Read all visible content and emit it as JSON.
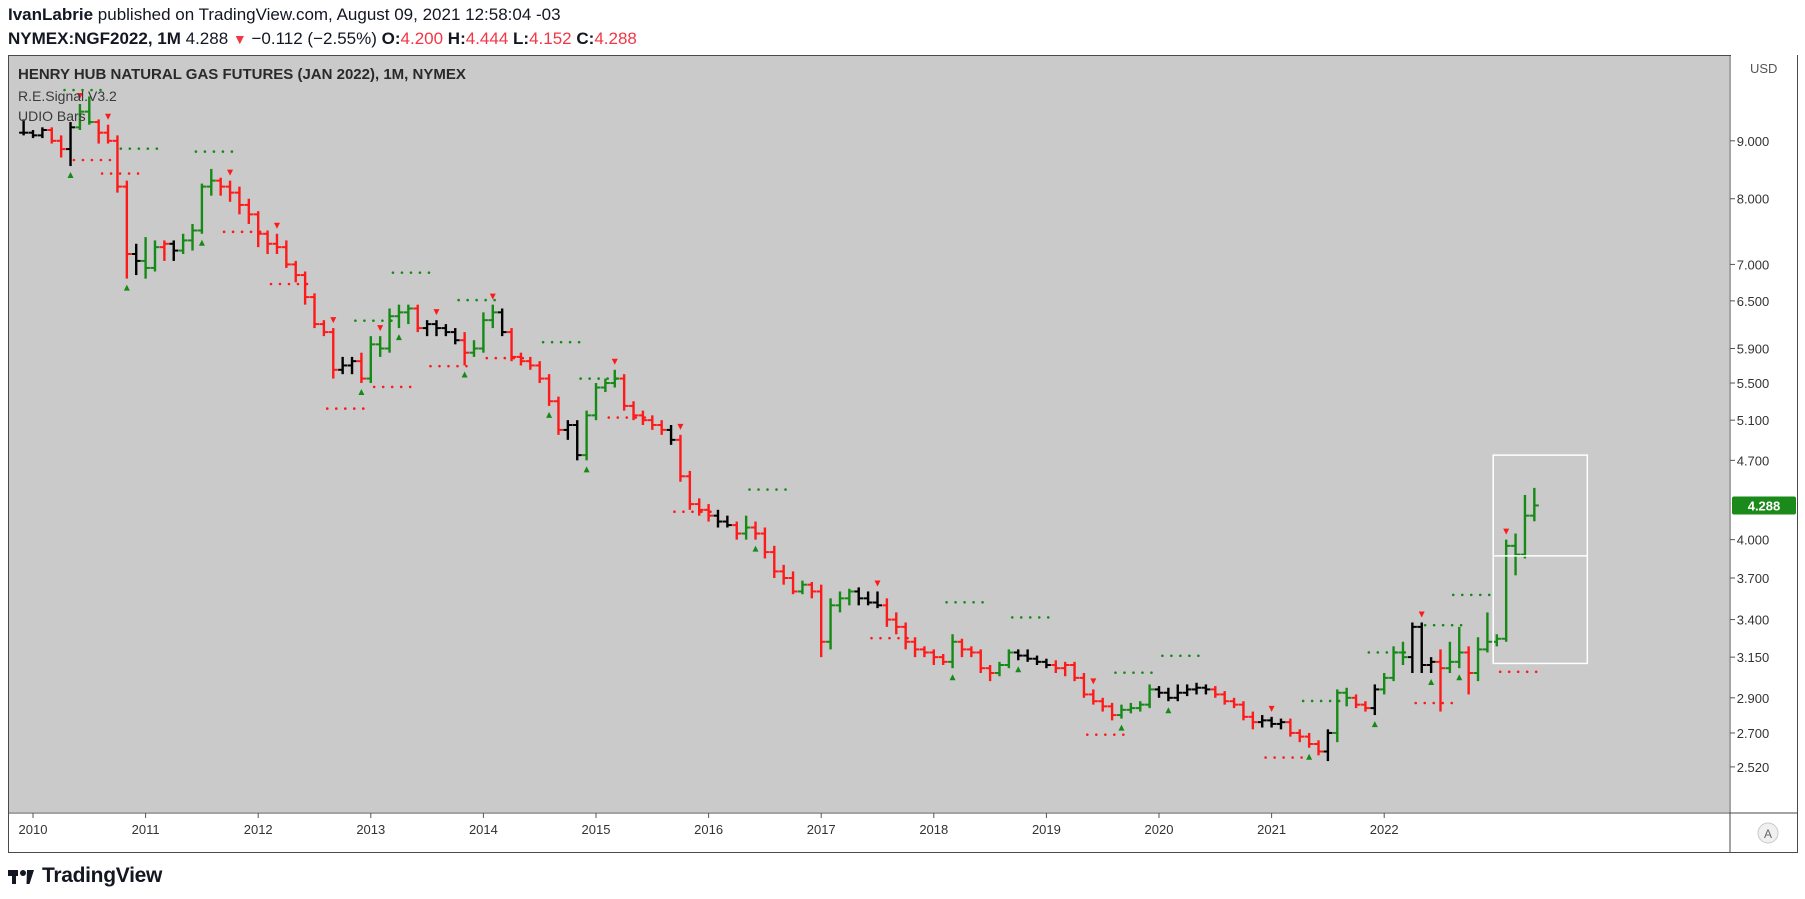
{
  "header": {
    "author": "IvanLabrie",
    "published_text": "published on TradingView.com, August 09, 2021 12:58:04 -03",
    "symbol": "NYMEX:NGF2022, 1M",
    "last": "4.288",
    "change_arrow": "▼",
    "change": "−0.112 (−2.55%)",
    "o_label": "O:",
    "o_value": "4.200",
    "h_label": "H:",
    "h_value": "4.444",
    "l_label": "L:",
    "l_value": "4.152",
    "c_label": "C:",
    "c_value": "4.288"
  },
  "legend": {
    "title": "HENRY HUB NATURAL GAS FUTURES (JAN 2022), 1M, NYMEX",
    "indicator_1": "R.E.Signal.V3.2",
    "indicator_2": "UDIO Bars"
  },
  "price_scale": {
    "currency": "USD",
    "last_price_label": "4.288",
    "auto_button": "A"
  },
  "footer": {
    "brand": "TradingView"
  },
  "colors": {
    "up": "#168a16",
    "down": "#ff1a1a",
    "neutral": "#000000",
    "last_price_badge": "#1a8a1a",
    "background": "#cacaca",
    "axis_background": "#ffffff"
  },
  "chart_data": {
    "type": "ohlc",
    "interval": "1M",
    "y_scale": "log",
    "ylim": [
      2.38,
      10.5
    ],
    "xlim": [
      "2009-10",
      "2022-12"
    ],
    "y_ticks": [
      "9.000",
      "8.000",
      "7.000",
      "6.500",
      "5.900",
      "5.500",
      "5.100",
      "4.700",
      "4.000",
      "3.700",
      "3.400",
      "3.150",
      "2.900",
      "2.700",
      "2.520"
    ],
    "x_ticks": [
      "2010",
      "2011",
      "2012",
      "2013",
      "2014",
      "2015",
      "2016",
      "2017",
      "2018",
      "2019",
      "2020",
      "2021",
      "2022"
    ],
    "bars_start": "2009-12",
    "bars": [
      {
        "o": 9.15,
        "h": 9.4,
        "l": 9.1,
        "c": 9.15,
        "t": "n"
      },
      {
        "o": 9.15,
        "h": 9.2,
        "l": 9.05,
        "c": 9.1,
        "t": "n"
      },
      {
        "o": 9.1,
        "h": 9.25,
        "l": 9.05,
        "c": 9.2,
        "t": "n"
      },
      {
        "o": 9.2,
        "h": 9.25,
        "l": 8.95,
        "c": 9.0,
        "t": "d"
      },
      {
        "o": 9.0,
        "h": 9.1,
        "l": 8.7,
        "c": 8.85,
        "t": "d"
      },
      {
        "o": 8.85,
        "h": 9.35,
        "l": 8.55,
        "c": 9.25,
        "t": "n"
      },
      {
        "o": 9.25,
        "h": 9.7,
        "l": 9.2,
        "c": 9.55,
        "t": "u"
      },
      {
        "o": 9.55,
        "h": 9.85,
        "l": 9.3,
        "c": 9.35,
        "t": "u"
      },
      {
        "o": 9.35,
        "h": 9.4,
        "l": 8.95,
        "c": 9.15,
        "t": "d"
      },
      {
        "o": 9.15,
        "h": 9.3,
        "l": 8.95,
        "c": 9.0,
        "t": "d"
      },
      {
        "o": 9.0,
        "h": 9.1,
        "l": 8.1,
        "c": 8.2,
        "t": "d"
      },
      {
        "o": 8.2,
        "h": 8.3,
        "l": 6.8,
        "c": 7.15,
        "t": "d"
      },
      {
        "o": 7.15,
        "h": 7.3,
        "l": 6.85,
        "c": 7.05,
        "t": "n"
      },
      {
        "o": 7.05,
        "h": 7.4,
        "l": 6.8,
        "c": 6.95,
        "t": "u"
      },
      {
        "o": 6.95,
        "h": 7.35,
        "l": 6.9,
        "c": 7.25,
        "t": "u"
      },
      {
        "o": 7.25,
        "h": 7.35,
        "l": 7.05,
        "c": 7.3,
        "t": "d"
      },
      {
        "o": 7.3,
        "h": 7.35,
        "l": 7.05,
        "c": 7.2,
        "t": "n"
      },
      {
        "o": 7.2,
        "h": 7.45,
        "l": 7.15,
        "c": 7.35,
        "t": "u"
      },
      {
        "o": 7.35,
        "h": 7.6,
        "l": 7.2,
        "c": 7.5,
        "t": "u"
      },
      {
        "o": 7.5,
        "h": 8.25,
        "l": 7.45,
        "c": 8.2,
        "t": "u"
      },
      {
        "o": 8.2,
        "h": 8.5,
        "l": 8.05,
        "c": 8.3,
        "t": "u"
      },
      {
        "o": 8.3,
        "h": 8.35,
        "l": 8.05,
        "c": 8.2,
        "t": "d"
      },
      {
        "o": 8.2,
        "h": 8.3,
        "l": 7.95,
        "c": 8.1,
        "t": "d"
      },
      {
        "o": 8.1,
        "h": 8.2,
        "l": 7.75,
        "c": 7.9,
        "t": "d"
      },
      {
        "o": 7.9,
        "h": 8.0,
        "l": 7.6,
        "c": 7.75,
        "t": "d"
      },
      {
        "o": 7.75,
        "h": 7.8,
        "l": 7.25,
        "c": 7.45,
        "t": "d"
      },
      {
        "o": 7.45,
        "h": 7.5,
        "l": 7.15,
        "c": 7.3,
        "t": "d"
      },
      {
        "o": 7.3,
        "h": 7.45,
        "l": 7.15,
        "c": 7.25,
        "t": "d"
      },
      {
        "o": 7.25,
        "h": 7.35,
        "l": 6.95,
        "c": 7.0,
        "t": "d"
      },
      {
        "o": 7.0,
        "h": 7.05,
        "l": 6.75,
        "c": 6.85,
        "t": "d"
      },
      {
        "o": 6.85,
        "h": 6.9,
        "l": 6.45,
        "c": 6.55,
        "t": "d"
      },
      {
        "o": 6.55,
        "h": 6.6,
        "l": 6.15,
        "c": 6.2,
        "t": "d"
      },
      {
        "o": 6.2,
        "h": 6.25,
        "l": 6.05,
        "c": 6.1,
        "t": "d"
      },
      {
        "o": 6.1,
        "h": 6.15,
        "l": 5.55,
        "c": 5.65,
        "t": "d"
      },
      {
        "o": 5.65,
        "h": 5.8,
        "l": 5.6,
        "c": 5.7,
        "t": "n"
      },
      {
        "o": 5.7,
        "h": 5.8,
        "l": 5.6,
        "c": 5.75,
        "t": "n"
      },
      {
        "o": 5.75,
        "h": 5.85,
        "l": 5.5,
        "c": 5.55,
        "t": "d"
      },
      {
        "o": 5.55,
        "h": 6.05,
        "l": 5.5,
        "c": 5.95,
        "t": "u"
      },
      {
        "o": 5.95,
        "h": 6.05,
        "l": 5.8,
        "c": 5.9,
        "t": "u"
      },
      {
        "o": 5.9,
        "h": 6.4,
        "l": 5.85,
        "c": 6.3,
        "t": "u"
      },
      {
        "o": 6.3,
        "h": 6.45,
        "l": 6.15,
        "c": 6.35,
        "t": "u"
      },
      {
        "o": 6.35,
        "h": 6.45,
        "l": 6.2,
        "c": 6.4,
        "t": "u"
      },
      {
        "o": 6.4,
        "h": 6.45,
        "l": 6.1,
        "c": 6.15,
        "t": "d"
      },
      {
        "o": 6.15,
        "h": 6.25,
        "l": 6.05,
        "c": 6.2,
        "t": "n"
      },
      {
        "o": 6.2,
        "h": 6.25,
        "l": 6.05,
        "c": 6.15,
        "t": "n"
      },
      {
        "o": 6.15,
        "h": 6.2,
        "l": 6.05,
        "c": 6.1,
        "t": "n"
      },
      {
        "o": 6.1,
        "h": 6.15,
        "l": 5.95,
        "c": 6.0,
        "t": "n"
      },
      {
        "o": 6.0,
        "h": 6.1,
        "l": 5.7,
        "c": 5.85,
        "t": "d"
      },
      {
        "o": 5.85,
        "h": 6.0,
        "l": 5.8,
        "c": 5.9,
        "t": "u"
      },
      {
        "o": 5.9,
        "h": 6.35,
        "l": 5.85,
        "c": 6.25,
        "t": "u"
      },
      {
        "o": 6.25,
        "h": 6.45,
        "l": 6.15,
        "c": 6.35,
        "t": "u"
      },
      {
        "o": 6.35,
        "h": 6.4,
        "l": 6.05,
        "c": 6.1,
        "t": "n"
      },
      {
        "o": 6.1,
        "h": 6.15,
        "l": 5.75,
        "c": 5.8,
        "t": "d"
      },
      {
        "o": 5.8,
        "h": 5.85,
        "l": 5.7,
        "c": 5.75,
        "t": "d"
      },
      {
        "o": 5.75,
        "h": 5.8,
        "l": 5.65,
        "c": 5.7,
        "t": "d"
      },
      {
        "o": 5.7,
        "h": 5.75,
        "l": 5.5,
        "c": 5.55,
        "t": "d"
      },
      {
        "o": 5.55,
        "h": 5.6,
        "l": 5.25,
        "c": 5.3,
        "t": "d"
      },
      {
        "o": 5.3,
        "h": 5.35,
        "l": 4.95,
        "c": 5.0,
        "t": "d"
      },
      {
        "o": 5.0,
        "h": 5.1,
        "l": 4.9,
        "c": 5.05,
        "t": "n"
      },
      {
        "o": 5.05,
        "h": 5.1,
        "l": 4.7,
        "c": 4.75,
        "t": "n"
      },
      {
        "o": 4.75,
        "h": 5.2,
        "l": 4.7,
        "c": 5.15,
        "t": "u"
      },
      {
        "o": 5.15,
        "h": 5.5,
        "l": 5.1,
        "c": 5.45,
        "t": "u"
      },
      {
        "o": 5.45,
        "h": 5.55,
        "l": 5.4,
        "c": 5.5,
        "t": "u"
      },
      {
        "o": 5.5,
        "h": 5.65,
        "l": 5.45,
        "c": 5.55,
        "t": "u"
      },
      {
        "o": 5.55,
        "h": 5.6,
        "l": 5.2,
        "c": 5.25,
        "t": "d"
      },
      {
        "o": 5.25,
        "h": 5.3,
        "l": 5.1,
        "c": 5.15,
        "t": "d"
      },
      {
        "o": 5.15,
        "h": 5.2,
        "l": 5.05,
        "c": 5.1,
        "t": "d"
      },
      {
        "o": 5.1,
        "h": 5.15,
        "l": 5.0,
        "c": 5.05,
        "t": "d"
      },
      {
        "o": 5.05,
        "h": 5.1,
        "l": 4.95,
        "c": 5.0,
        "t": "d"
      },
      {
        "o": 5.0,
        "h": 5.05,
        "l": 4.85,
        "c": 4.9,
        "t": "n"
      },
      {
        "o": 4.9,
        "h": 4.95,
        "l": 4.5,
        "c": 4.55,
        "t": "d"
      },
      {
        "o": 4.55,
        "h": 4.6,
        "l": 4.25,
        "c": 4.3,
        "t": "d"
      },
      {
        "o": 4.3,
        "h": 4.35,
        "l": 4.2,
        "c": 4.25,
        "t": "d"
      },
      {
        "o": 4.25,
        "h": 4.3,
        "l": 4.15,
        "c": 4.2,
        "t": "d"
      },
      {
        "o": 4.2,
        "h": 4.25,
        "l": 4.1,
        "c": 4.15,
        "t": "n"
      },
      {
        "o": 4.15,
        "h": 4.2,
        "l": 4.1,
        "c": 4.12,
        "t": "n"
      },
      {
        "o": 4.12,
        "h": 4.15,
        "l": 4.0,
        "c": 4.05,
        "t": "d"
      },
      {
        "o": 4.05,
        "h": 4.2,
        "l": 4.0,
        "c": 4.1,
        "t": "u"
      },
      {
        "o": 4.1,
        "h": 4.15,
        "l": 4.0,
        "c": 4.05,
        "t": "d"
      },
      {
        "o": 4.05,
        "h": 4.1,
        "l": 3.85,
        "c": 3.9,
        "t": "d"
      },
      {
        "o": 3.9,
        "h": 3.95,
        "l": 3.7,
        "c": 3.75,
        "t": "d"
      },
      {
        "o": 3.75,
        "h": 3.8,
        "l": 3.65,
        "c": 3.7,
        "t": "d"
      },
      {
        "o": 3.7,
        "h": 3.75,
        "l": 3.58,
        "c": 3.6,
        "t": "d"
      },
      {
        "o": 3.6,
        "h": 3.68,
        "l": 3.58,
        "c": 3.65,
        "t": "u"
      },
      {
        "o": 3.65,
        "h": 3.67,
        "l": 3.55,
        "c": 3.6,
        "t": "d"
      },
      {
        "o": 3.6,
        "h": 3.65,
        "l": 3.15,
        "c": 3.25,
        "t": "d"
      },
      {
        "o": 3.25,
        "h": 3.55,
        "l": 3.2,
        "c": 3.5,
        "t": "u"
      },
      {
        "o": 3.5,
        "h": 3.6,
        "l": 3.45,
        "c": 3.55,
        "t": "u"
      },
      {
        "o": 3.55,
        "h": 3.62,
        "l": 3.5,
        "c": 3.6,
        "t": "u"
      },
      {
        "o": 3.6,
        "h": 3.63,
        "l": 3.5,
        "c": 3.55,
        "t": "n"
      },
      {
        "o": 3.55,
        "h": 3.6,
        "l": 3.5,
        "c": 3.52,
        "t": "n"
      },
      {
        "o": 3.52,
        "h": 3.6,
        "l": 3.48,
        "c": 3.5,
        "t": "n"
      },
      {
        "o": 3.5,
        "h": 3.55,
        "l": 3.35,
        "c": 3.4,
        "t": "d"
      },
      {
        "o": 3.4,
        "h": 3.45,
        "l": 3.3,
        "c": 3.35,
        "t": "d"
      },
      {
        "o": 3.35,
        "h": 3.38,
        "l": 3.2,
        "c": 3.25,
        "t": "d"
      },
      {
        "o": 3.25,
        "h": 3.28,
        "l": 3.15,
        "c": 3.2,
        "t": "d"
      },
      {
        "o": 3.2,
        "h": 3.22,
        "l": 3.15,
        "c": 3.18,
        "t": "d"
      },
      {
        "o": 3.18,
        "h": 3.2,
        "l": 3.1,
        "c": 3.15,
        "t": "d"
      },
      {
        "o": 3.15,
        "h": 3.17,
        "l": 3.1,
        "c": 3.12,
        "t": "d"
      },
      {
        "o": 3.12,
        "h": 3.3,
        "l": 3.08,
        "c": 3.25,
        "t": "u"
      },
      {
        "o": 3.25,
        "h": 3.27,
        "l": 3.15,
        "c": 3.2,
        "t": "d"
      },
      {
        "o": 3.2,
        "h": 3.22,
        "l": 3.15,
        "c": 3.18,
        "t": "d"
      },
      {
        "o": 3.18,
        "h": 3.2,
        "l": 3.05,
        "c": 3.08,
        "t": "d"
      },
      {
        "o": 3.08,
        "h": 3.1,
        "l": 3.0,
        "c": 3.05,
        "t": "d"
      },
      {
        "o": 3.05,
        "h": 3.12,
        "l": 3.03,
        "c": 3.1,
        "t": "u"
      },
      {
        "o": 3.1,
        "h": 3.2,
        "l": 3.08,
        "c": 3.18,
        "t": "u"
      },
      {
        "o": 3.18,
        "h": 3.2,
        "l": 3.13,
        "c": 3.16,
        "t": "n"
      },
      {
        "o": 3.16,
        "h": 3.2,
        "l": 3.12,
        "c": 3.14,
        "t": "n"
      },
      {
        "o": 3.14,
        "h": 3.16,
        "l": 3.1,
        "c": 3.12,
        "t": "n"
      },
      {
        "o": 3.12,
        "h": 3.14,
        "l": 3.08,
        "c": 3.1,
        "t": "n"
      },
      {
        "o": 3.1,
        "h": 3.13,
        "l": 3.05,
        "c": 3.08,
        "t": "d"
      },
      {
        "o": 3.08,
        "h": 3.12,
        "l": 3.03,
        "c": 3.1,
        "t": "d"
      },
      {
        "o": 3.1,
        "h": 3.12,
        "l": 3.0,
        "c": 3.02,
        "t": "d"
      },
      {
        "o": 3.02,
        "h": 3.05,
        "l": 2.9,
        "c": 2.92,
        "t": "d"
      },
      {
        "o": 2.92,
        "h": 2.95,
        "l": 2.86,
        "c": 2.88,
        "t": "d"
      },
      {
        "o": 2.88,
        "h": 2.9,
        "l": 2.82,
        "c": 2.85,
        "t": "d"
      },
      {
        "o": 2.85,
        "h": 2.87,
        "l": 2.77,
        "c": 2.8,
        "t": "d"
      },
      {
        "o": 2.8,
        "h": 2.86,
        "l": 2.78,
        "c": 2.83,
        "t": "u"
      },
      {
        "o": 2.83,
        "h": 2.87,
        "l": 2.81,
        "c": 2.84,
        "t": "u"
      },
      {
        "o": 2.84,
        "h": 2.88,
        "l": 2.82,
        "c": 2.86,
        "t": "u"
      },
      {
        "o": 2.86,
        "h": 2.98,
        "l": 2.84,
        "c": 2.95,
        "t": "u"
      },
      {
        "o": 2.95,
        "h": 2.97,
        "l": 2.9,
        "c": 2.93,
        "t": "n"
      },
      {
        "o": 2.93,
        "h": 2.96,
        "l": 2.88,
        "c": 2.9,
        "t": "n"
      },
      {
        "o": 2.9,
        "h": 2.98,
        "l": 2.88,
        "c": 2.93,
        "t": "n"
      },
      {
        "o": 2.93,
        "h": 2.98,
        "l": 2.91,
        "c": 2.95,
        "t": "n"
      },
      {
        "o": 2.95,
        "h": 2.99,
        "l": 2.92,
        "c": 2.96,
        "t": "n"
      },
      {
        "o": 2.96,
        "h": 2.98,
        "l": 2.92,
        "c": 2.95,
        "t": "n"
      },
      {
        "o": 2.95,
        "h": 2.97,
        "l": 2.9,
        "c": 2.92,
        "t": "d"
      },
      {
        "o": 2.92,
        "h": 2.94,
        "l": 2.86,
        "c": 2.88,
        "t": "d"
      },
      {
        "o": 2.88,
        "h": 2.9,
        "l": 2.84,
        "c": 2.86,
        "t": "d"
      },
      {
        "o": 2.86,
        "h": 2.88,
        "l": 2.77,
        "c": 2.79,
        "t": "d"
      },
      {
        "o": 2.79,
        "h": 2.82,
        "l": 2.72,
        "c": 2.76,
        "t": "d"
      },
      {
        "o": 2.76,
        "h": 2.8,
        "l": 2.73,
        "c": 2.77,
        "t": "n"
      },
      {
        "o": 2.77,
        "h": 2.79,
        "l": 2.73,
        "c": 2.75,
        "t": "n"
      },
      {
        "o": 2.75,
        "h": 2.78,
        "l": 2.72,
        "c": 2.76,
        "t": "n"
      },
      {
        "o": 2.76,
        "h": 2.78,
        "l": 2.68,
        "c": 2.7,
        "t": "d"
      },
      {
        "o": 2.7,
        "h": 2.72,
        "l": 2.65,
        "c": 2.68,
        "t": "d"
      },
      {
        "o": 2.68,
        "h": 2.7,
        "l": 2.62,
        "c": 2.64,
        "t": "d"
      },
      {
        "o": 2.64,
        "h": 2.66,
        "l": 2.58,
        "c": 2.6,
        "t": "d"
      },
      {
        "o": 2.6,
        "h": 2.72,
        "l": 2.55,
        "c": 2.7,
        "t": "n"
      },
      {
        "o": 2.7,
        "h": 2.95,
        "l": 2.65,
        "c": 2.93,
        "t": "u"
      },
      {
        "o": 2.93,
        "h": 2.96,
        "l": 2.85,
        "c": 2.9,
        "t": "u"
      },
      {
        "o": 2.9,
        "h": 2.92,
        "l": 2.84,
        "c": 2.86,
        "t": "d"
      },
      {
        "o": 2.86,
        "h": 2.88,
        "l": 2.82,
        "c": 2.84,
        "t": "d"
      },
      {
        "o": 2.84,
        "h": 2.98,
        "l": 2.8,
        "c": 2.95,
        "t": "n"
      },
      {
        "o": 2.95,
        "h": 3.05,
        "l": 2.92,
        "c": 3.02,
        "t": "u"
      },
      {
        "o": 3.02,
        "h": 3.22,
        "l": 3.0,
        "c": 3.18,
        "t": "u"
      },
      {
        "o": 3.18,
        "h": 3.25,
        "l": 3.1,
        "c": 3.15,
        "t": "u"
      },
      {
        "o": 3.15,
        "h": 3.38,
        "l": 3.05,
        "c": 3.35,
        "t": "n"
      },
      {
        "o": 3.35,
        "h": 3.38,
        "l": 3.05,
        "c": 3.1,
        "t": "n"
      },
      {
        "o": 3.1,
        "h": 3.15,
        "l": 3.05,
        "c": 3.12,
        "t": "n"
      },
      {
        "o": 3.12,
        "h": 3.2,
        "l": 2.82,
        "c": 3.08,
        "t": "d"
      },
      {
        "o": 3.08,
        "h": 3.25,
        "l": 3.05,
        "c": 3.12,
        "t": "u"
      },
      {
        "o": 3.12,
        "h": 3.35,
        "l": 3.08,
        "c": 3.18,
        "t": "u"
      },
      {
        "o": 3.18,
        "h": 3.22,
        "l": 2.92,
        "c": 3.05,
        "t": "d"
      },
      {
        "o": 3.05,
        "h": 3.28,
        "l": 3.0,
        "c": 3.2,
        "t": "u"
      },
      {
        "o": 3.2,
        "h": 3.45,
        "l": 3.18,
        "c": 3.25,
        "t": "u"
      },
      {
        "o": 3.25,
        "h": 3.3,
        "l": 3.22,
        "c": 3.27,
        "t": "u"
      },
      {
        "o": 3.27,
        "h": 4.0,
        "l": 3.25,
        "c": 3.95,
        "t": "u"
      },
      {
        "o": 3.95,
        "h": 4.05,
        "l": 3.72,
        "c": 3.88,
        "t": "u"
      },
      {
        "o": 3.88,
        "h": 4.38,
        "l": 3.85,
        "c": 4.2,
        "t": "u"
      },
      {
        "o": 4.2,
        "h": 4.444,
        "l": 4.152,
        "c": 4.288,
        "t": "u"
      }
    ],
    "up_signals": [
      5,
      11,
      19,
      36,
      40,
      47,
      56,
      60,
      78,
      99,
      106,
      117,
      122,
      137,
      144,
      150,
      153,
      164
    ],
    "down_signals": [
      6,
      9,
      22,
      27,
      33,
      38,
      44,
      50,
      63,
      70,
      91,
      114,
      133,
      149,
      158
    ]
  }
}
